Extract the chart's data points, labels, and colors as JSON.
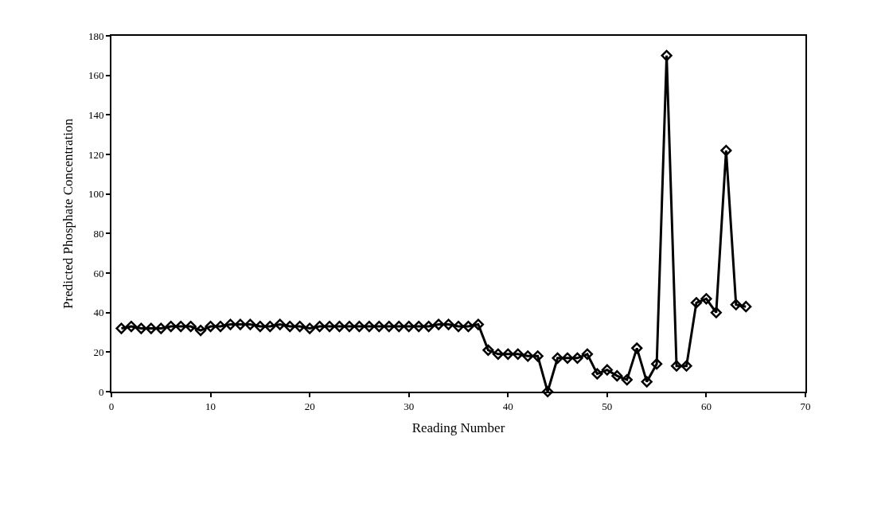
{
  "chart_data": {
    "type": "line",
    "xlabel": "Reading Number",
    "ylabel": "Predicted Phosphate Concentration",
    "x": [
      1,
      2,
      3,
      4,
      5,
      6,
      7,
      8,
      9,
      10,
      11,
      12,
      13,
      14,
      15,
      16,
      17,
      18,
      19,
      20,
      21,
      22,
      23,
      24,
      25,
      26,
      27,
      28,
      29,
      30,
      31,
      32,
      33,
      34,
      35,
      36,
      37,
      38,
      39,
      40,
      41,
      42,
      43,
      44,
      45,
      46,
      47,
      48,
      49,
      50,
      51,
      52,
      53,
      54,
      55,
      56,
      57,
      58,
      59,
      60,
      61,
      62,
      63,
      64
    ],
    "series": [
      {
        "color": "#000000",
        "values": [
          32,
          33,
          32,
          32,
          32,
          33,
          33,
          33,
          31,
          33,
          33,
          34,
          34,
          34,
          33,
          33,
          34,
          33,
          33,
          32,
          33,
          33,
          33,
          33,
          33,
          33,
          33,
          33,
          33,
          33,
          33,
          33,
          34,
          34,
          33,
          33,
          34,
          21,
          19,
          19,
          19,
          18,
          18,
          0,
          17,
          17,
          17,
          19,
          9,
          11,
          8,
          6,
          22,
          5,
          14,
          170,
          13,
          13,
          45,
          47,
          40,
          122,
          44,
          43
        ]
      }
    ],
    "xlim": [
      0,
      70
    ],
    "xticks": [
      0,
      10,
      20,
      30,
      40,
      50,
      60,
      70
    ],
    "ylim": [
      0,
      180
    ],
    "yticks": [
      0,
      20,
      40,
      60,
      80,
      100,
      120,
      140,
      160,
      180
    ],
    "marker": "diamond",
    "line_style": "solid"
  }
}
